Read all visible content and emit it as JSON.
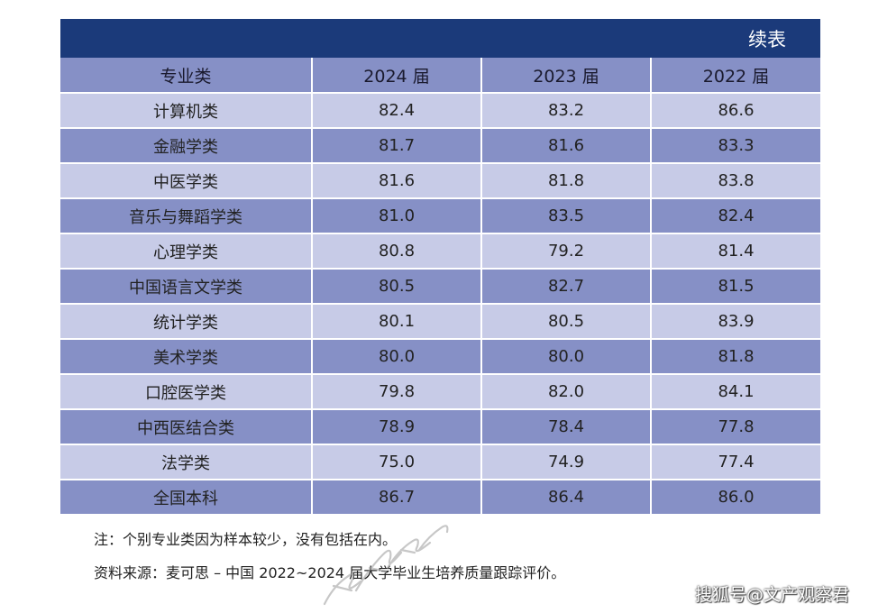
{
  "banner": {
    "title": "续表"
  },
  "table": {
    "headers": [
      "专业类",
      "2024 届",
      "2023 届",
      "2022 届"
    ],
    "rows": [
      [
        "计算机类",
        "82.4",
        "83.2",
        "86.6"
      ],
      [
        "金融学类",
        "81.7",
        "81.6",
        "83.3"
      ],
      [
        "中医学类",
        "81.6",
        "81.8",
        "83.8"
      ],
      [
        "音乐与舞蹈学类",
        "81.0",
        "83.5",
        "82.4"
      ],
      [
        "心理学类",
        "80.8",
        "79.2",
        "81.4"
      ],
      [
        "中国语言文学类",
        "80.5",
        "82.7",
        "81.5"
      ],
      [
        "统计学类",
        "80.1",
        "80.5",
        "83.9"
      ],
      [
        "美术学类",
        "80.0",
        "80.0",
        "81.8"
      ],
      [
        "口腔医学类",
        "79.8",
        "82.0",
        "84.1"
      ],
      [
        "中西医结合类",
        "78.9",
        "78.4",
        "77.8"
      ],
      [
        "法学类",
        "75.0",
        "74.9",
        "77.4"
      ],
      [
        "全国本科",
        "86.7",
        "86.4",
        "86.0"
      ]
    ]
  },
  "notes": {
    "note": "注：个别专业类因为样本较少，没有包括在内。",
    "source": "资料来源：麦可思 – 中国 2022~2024 届大学毕业生培养质量跟踪评价。"
  },
  "watermark": {
    "credit": "搜狐号@文产观察君"
  },
  "colors": {
    "banner": "#1b3a7a",
    "header_row": "#8690c6",
    "light_row": "#c7cbe7",
    "dark_row": "#8690c6"
  }
}
